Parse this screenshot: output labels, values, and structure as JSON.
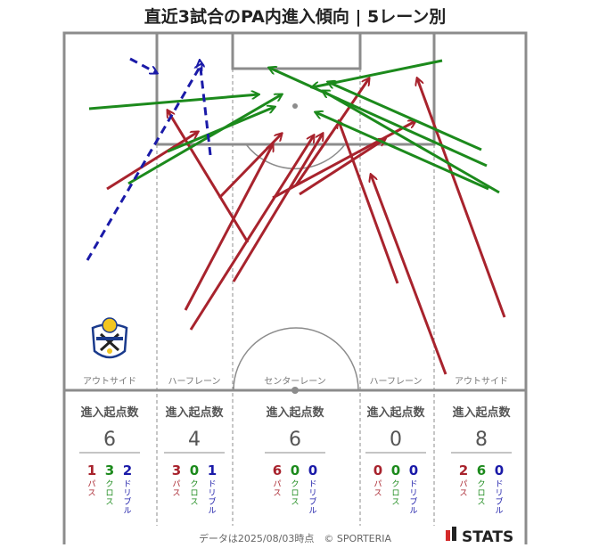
{
  "title": "直近3試合のPA内進入傾向 | 5レーン別",
  "lanes": [
    {
      "name": "アウトサイド",
      "header": "進入起点数",
      "total": "6",
      "pass": "1",
      "cross": "3",
      "dribble": "2"
    },
    {
      "name": "ハーフレーン",
      "header": "進入起点数",
      "total": "4",
      "pass": "3",
      "cross": "0",
      "dribble": "1"
    },
    {
      "name": "センターレーン",
      "header": "進入起点数",
      "total": "6",
      "pass": "6",
      "cross": "0",
      "dribble": "0"
    },
    {
      "name": "ハーフレーン",
      "header": "進入起点数",
      "total": "0",
      "pass": "0",
      "cross": "0",
      "dribble": "0"
    },
    {
      "name": "アウトサイド",
      "header": "進入起点数",
      "total": "8",
      "pass": "2",
      "cross": "6",
      "dribble": "0"
    }
  ],
  "type_labels": {
    "pass": "パス",
    "cross": "クロス",
    "dribble": "ドリブル"
  },
  "colors": {
    "pass": "#a8232d",
    "cross": "#1c8a1c",
    "dribble": "#1a1aa8",
    "pitch_line": "#8c8c8c"
  },
  "footer": "データは2025/08/03時点　© SPORTERIA",
  "brand": "STATS",
  "logo": "club-crest-icon"
}
